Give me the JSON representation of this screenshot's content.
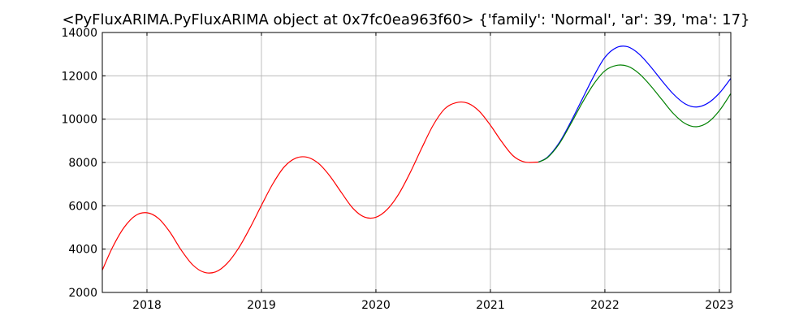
{
  "chart_data": {
    "type": "line",
    "title": "<PyFluxARIMA.PyFluxARIMA object at 0x7fc0ea963f60> {'family': 'Normal', 'ar': 39, 'ma': 17}",
    "xlabel": "",
    "ylabel": "",
    "xlim": [
      2017.61,
      2023.1
    ],
    "ylim": [
      2000,
      14000
    ],
    "x_ticks": [
      2018,
      2019,
      2020,
      2021,
      2022,
      2023
    ],
    "x_tick_labels": [
      "2018",
      "2019",
      "2020",
      "2021",
      "2022",
      "2023"
    ],
    "y_ticks": [
      2000,
      4000,
      6000,
      8000,
      10000,
      12000,
      14000
    ],
    "y_tick_labels": [
      "2000",
      "4000",
      "6000",
      "8000",
      "10000",
      "12000",
      "14000"
    ],
    "grid": true,
    "legend": "none",
    "series": [
      {
        "color": "#ff0000",
        "x": [
          2017.61,
          2017.7,
          2017.8,
          2017.9,
          2018.0,
          2018.1,
          2018.2,
          2018.3,
          2018.4,
          2018.5,
          2018.6,
          2018.7,
          2018.8,
          2018.9,
          2019.0,
          2019.1,
          2019.2,
          2019.3,
          2019.4,
          2019.5,
          2019.6,
          2019.7,
          2019.8,
          2019.9,
          2020.0,
          2020.1,
          2020.2,
          2020.3,
          2020.4,
          2020.5,
          2020.6,
          2020.7,
          2020.8,
          2020.9,
          2021.0,
          2021.1,
          2021.2,
          2021.3,
          2021.42
        ],
        "y": [
          3030,
          4090,
          5000,
          5550,
          5680,
          5420,
          4790,
          3950,
          3270,
          2930,
          2950,
          3340,
          4040,
          4980,
          6020,
          7020,
          7800,
          8200,
          8240,
          7950,
          7360,
          6600,
          5880,
          5480,
          5470,
          5840,
          6550,
          7540,
          8660,
          9720,
          10470,
          10760,
          10740,
          10380,
          9720,
          8950,
          8300,
          8020,
          8020
        ]
      },
      {
        "color": "#0000ff",
        "x": [
          2021.42,
          2021.5,
          2021.6,
          2021.7,
          2021.8,
          2021.9,
          2022.0,
          2022.1,
          2022.2,
          2022.3,
          2022.4,
          2022.5,
          2022.6,
          2022.7,
          2022.8,
          2022.9,
          2023.0,
          2023.1
        ],
        "y": [
          8020,
          8250,
          8900,
          9850,
          10900,
          11950,
          12850,
          13300,
          13340,
          13000,
          12420,
          11760,
          11150,
          10710,
          10560,
          10740,
          11200,
          11880
        ]
      },
      {
        "color": "#008000",
        "x": [
          2021.42,
          2021.5,
          2021.6,
          2021.7,
          2021.8,
          2021.9,
          2022.0,
          2022.1,
          2022.2,
          2022.3,
          2022.4,
          2022.5,
          2022.6,
          2022.7,
          2022.8,
          2022.9,
          2023.0,
          2023.1
        ],
        "y": [
          8020,
          8230,
          8850,
          9760,
          10730,
          11600,
          12230,
          12480,
          12440,
          12100,
          11540,
          10890,
          10250,
          9800,
          9650,
          9850,
          10390,
          11180
        ]
      }
    ]
  }
}
